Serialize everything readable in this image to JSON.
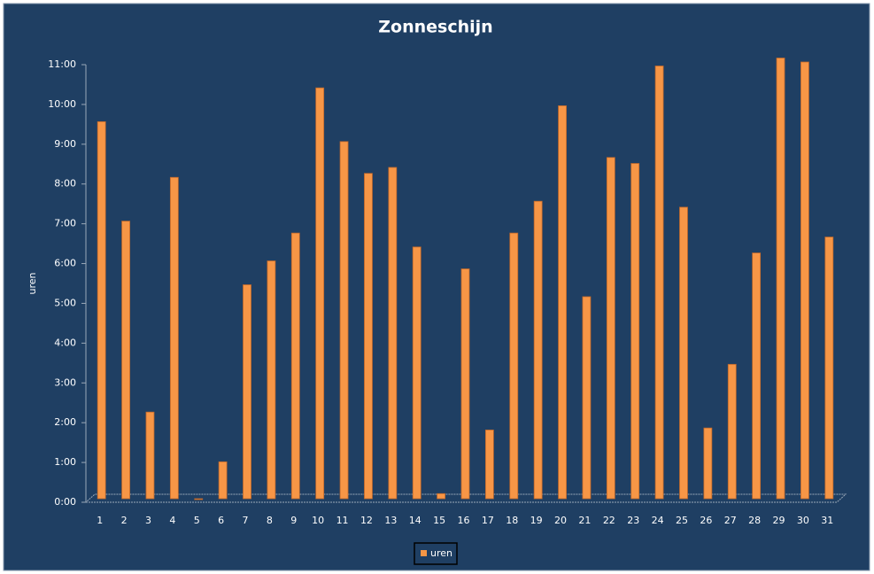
{
  "chart_data": {
    "type": "bar",
    "title": "Zonneschijn",
    "y_label": "uren",
    "categories": [
      "1",
      "2",
      "3",
      "4",
      "5",
      "6",
      "7",
      "8",
      "9",
      "10",
      "11",
      "12",
      "13",
      "14",
      "15",
      "16",
      "17",
      "18",
      "19",
      "20",
      "21",
      "22",
      "23",
      "24",
      "25",
      "26",
      "27",
      "28",
      "29",
      "30",
      "31"
    ],
    "series": [
      {
        "name": "uren",
        "color": "#f79646",
        "values": [
          9.5,
          7.0,
          2.2,
          8.1,
          0,
          0.95,
          5.4,
          6.0,
          6.7,
          10.35,
          9.0,
          8.2,
          8.35,
          6.35,
          0.15,
          5.8,
          1.75,
          6.7,
          7.5,
          9.9,
          5.1,
          8.6,
          8.45,
          10.9,
          7.35,
          1.8,
          3.4,
          6.2,
          11.1,
          11.0,
          6.6
        ]
      }
    ],
    "ylim": [
      0,
      11
    ],
    "yticks": [
      {
        "value": 0,
        "label": "0:00"
      },
      {
        "value": 1,
        "label": "1:00"
      },
      {
        "value": 2,
        "label": "2:00"
      },
      {
        "value": 3,
        "label": "3:00"
      },
      {
        "value": 4,
        "label": "4:00"
      },
      {
        "value": 5,
        "label": "5:00"
      },
      {
        "value": 6,
        "label": "6:00"
      },
      {
        "value": 7,
        "label": "7:00"
      },
      {
        "value": 8,
        "label": "8:00"
      },
      {
        "value": 9,
        "label": "9:00"
      },
      {
        "value": 10,
        "label": "10:00"
      },
      {
        "value": 11,
        "label": "11:00"
      }
    ],
    "legend": "bottom"
  }
}
